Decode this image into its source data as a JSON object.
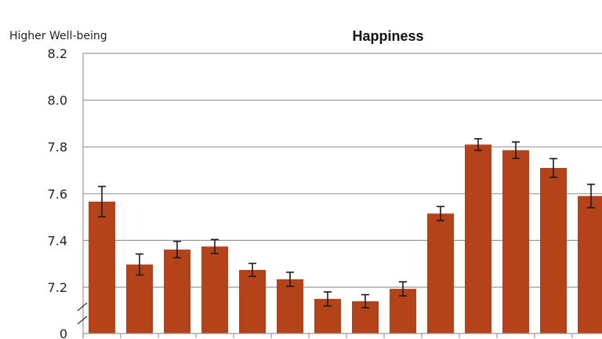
{
  "chart_data": {
    "type": "bar",
    "title": "Happiness",
    "ylabel": "Higher Well-being",
    "xlabel": "",
    "ylim": [
      7.1,
      8.2
    ],
    "axis_break": {
      "below": 7.1,
      "bottom_label": "0"
    },
    "yticks": [
      "0",
      "7.2",
      "7.4",
      "7.6",
      "7.8",
      "8.0",
      "8.2"
    ],
    "grid": true,
    "bar_color": "#B5431A",
    "values": [
      7.566,
      7.297,
      7.361,
      7.374,
      7.274,
      7.234,
      7.15,
      7.14,
      7.193,
      7.515,
      7.81,
      7.786,
      7.71,
      7.59
    ],
    "errors": [
      0.065,
      0.045,
      0.035,
      0.03,
      0.028,
      0.03,
      0.03,
      0.028,
      0.03,
      0.03,
      0.025,
      0.035,
      0.04,
      0.05
    ]
  }
}
